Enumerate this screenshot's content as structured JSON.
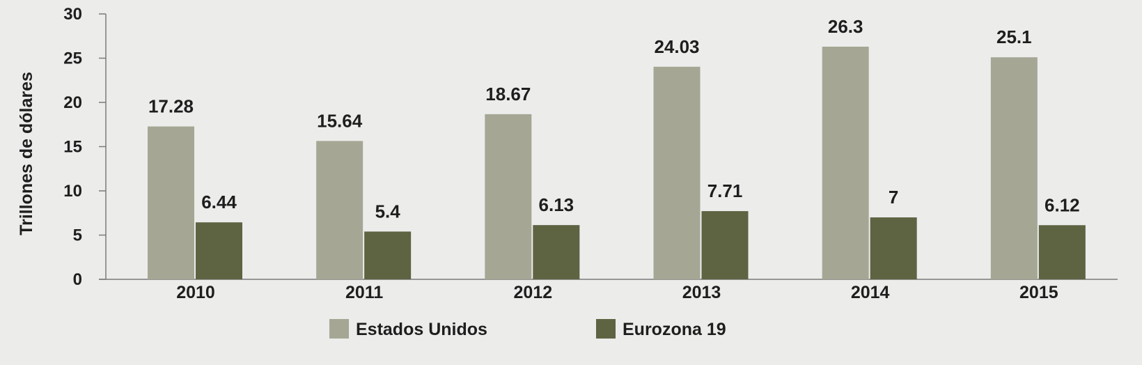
{
  "chart_data": {
    "type": "bar",
    "title": "",
    "xlabel": "",
    "ylabel": "Trillones de dólares",
    "ylim": [
      0,
      30
    ],
    "yticks": [
      0,
      5,
      10,
      15,
      20,
      25,
      30
    ],
    "categories": [
      "2010",
      "2011",
      "2012",
      "2013",
      "2014",
      "2015"
    ],
    "series": [
      {
        "name": "Estados Unidos",
        "color": "#a5a794",
        "values": [
          17.28,
          15.64,
          18.67,
          24.03,
          26.3,
          25.1
        ],
        "labels": [
          "17.28",
          "15.64",
          "18.67",
          "24.03",
          "26.3",
          "25.1"
        ]
      },
      {
        "name": "Eurozona 19",
        "color": "#5e6342",
        "values": [
          6.44,
          5.4,
          6.13,
          7.71,
          7,
          6.12
        ],
        "labels": [
          "6.44",
          "5.4",
          "6.13",
          "7.71",
          "7",
          "6.12"
        ]
      }
    ],
    "grid": false,
    "legend_position": "bottom",
    "axis_color": "#7a7a7a"
  }
}
